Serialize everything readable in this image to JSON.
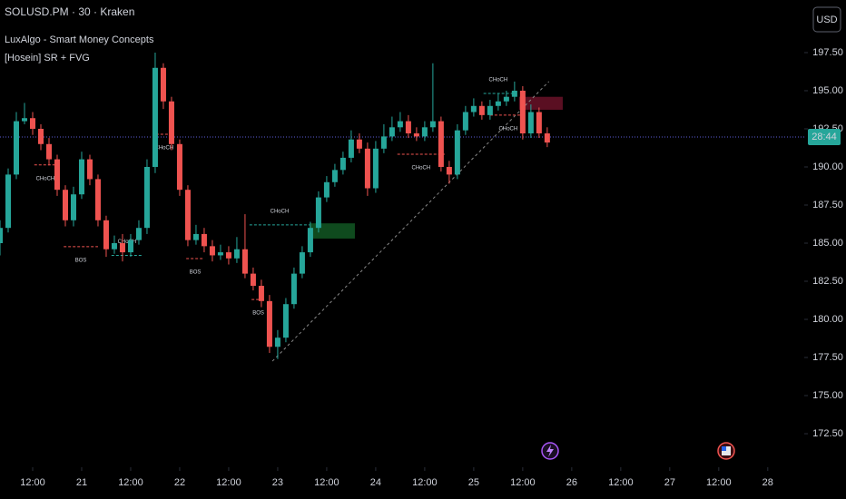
{
  "header": {
    "symbol": "SOLUSD.PM · 30 · Kraken",
    "indicators": [
      "LuxAlgo - Smart Money Concepts",
      "[Hosein] SR + FVG"
    ],
    "currency_button": "USD"
  },
  "chart_data": {
    "type": "candlestick",
    "x": [
      4,
      6,
      8,
      10,
      12,
      14,
      16,
      18,
      20,
      22,
      24,
      26,
      28,
      30,
      32,
      34,
      36,
      38,
      40,
      42,
      44,
      46,
      48,
      50,
      52,
      54,
      56,
      58,
      60,
      62,
      64,
      66,
      68,
      70,
      72,
      74,
      76,
      78,
      80,
      82,
      84,
      86,
      88,
      90,
      92,
      94,
      96,
      98,
      100,
      102,
      104,
      106,
      108,
      110,
      112,
      114,
      116,
      118,
      120,
      122,
      124,
      126,
      128,
      130,
      132,
      134,
      136,
      138
    ],
    "open": [
      185,
      186,
      189.5,
      193,
      193.2,
      192.5,
      191.5,
      190.5,
      188.5,
      186.5,
      188.2,
      190.5,
      189.2,
      186.5,
      184.6,
      185,
      184.4,
      185.2,
      186,
      190,
      196.5,
      194.3,
      191.5,
      188.5,
      185.2,
      185.6,
      184.8,
      184.2,
      184.4,
      184,
      184.6,
      183,
      182.2,
      181.2,
      178.2,
      178.8,
      181,
      183,
      184.4,
      186,
      188,
      189,
      189.8,
      190.6,
      191.8,
      191.2,
      188.6,
      191.2,
      192,
      192.6,
      193,
      192.2,
      192,
      192.6,
      193,
      190,
      189.5,
      192.4,
      193.6,
      194,
      193.4,
      194,
      194.3,
      194.6,
      195,
      192.2,
      193.6,
      192.2
    ],
    "high": [
      186.5,
      189.9,
      193.6,
      194.2,
      193.6,
      192.8,
      191.9,
      190.8,
      188.8,
      188.7,
      191,
      190.8,
      189.5,
      186.8,
      185.5,
      185.6,
      185.6,
      186.5,
      190.5,
      197.5,
      196.8,
      194.6,
      191.8,
      188.8,
      186.2,
      186,
      185.2,
      184.9,
      184.8,
      185.4,
      186.9,
      183.4,
      182.6,
      181.6,
      179.3,
      181.4,
      183.4,
      184.8,
      186.4,
      188.4,
      189.4,
      190.2,
      191,
      192.4,
      192.2,
      191.6,
      191.7,
      192.8,
      193.3,
      193.6,
      193.4,
      192.6,
      193,
      196.8,
      193.3,
      190.4,
      192.8,
      194,
      194.5,
      194.3,
      194.4,
      194.8,
      195,
      195.6,
      195.3,
      194.1,
      193.9,
      192.6
    ],
    "low": [
      184.2,
      185.7,
      189.2,
      192.8,
      192.1,
      191.1,
      190.1,
      188.1,
      186.1,
      186.1,
      187.9,
      188.8,
      186.1,
      184.1,
      184.3,
      183.8,
      184.1,
      184.9,
      185.6,
      189.6,
      193.8,
      191.1,
      188.1,
      184.8,
      184.9,
      184.4,
      183.8,
      183.9,
      183.6,
      183.7,
      182.7,
      181.9,
      180.8,
      177.8,
      177.4,
      178.5,
      180.7,
      182.7,
      184.1,
      185.7,
      187.7,
      188.7,
      189.5,
      190.3,
      190.9,
      188.1,
      188.3,
      190.9,
      191.7,
      192.3,
      191.9,
      191.7,
      191.7,
      192.3,
      189.7,
      188.9,
      189.2,
      192.1,
      193.3,
      193.1,
      193.1,
      193.7,
      194,
      194.3,
      191.8,
      191.9,
      191.9,
      191.3
    ],
    "close": [
      186,
      189.5,
      193,
      193.2,
      192.5,
      191.5,
      190.5,
      188.5,
      186.5,
      188.2,
      190.5,
      189.2,
      186.5,
      184.6,
      185,
      184.4,
      185.2,
      186,
      190,
      196.5,
      194.3,
      191.5,
      188.5,
      185.2,
      185.6,
      184.8,
      184.2,
      184.4,
      184,
      184.6,
      183,
      182.2,
      181.2,
      178.2,
      178.8,
      181,
      183,
      184.4,
      186,
      188,
      189,
      189.8,
      190.6,
      191.8,
      191.2,
      188.6,
      191.2,
      192,
      192.6,
      193,
      192.2,
      192,
      192.6,
      193,
      190,
      189.5,
      192.4,
      193.6,
      194,
      193.4,
      194,
      194.3,
      194.6,
      195,
      192.2,
      193.6,
      192.2,
      191.6
    ],
    "up_color": "#26a69a",
    "down_color": "#ef5350",
    "xlim": [
      4,
      199.6
    ],
    "ylim": [
      170.3,
      200.95
    ],
    "xticks": [
      {
        "value": 12,
        "label": "12:00"
      },
      {
        "value": 24,
        "label": "21"
      },
      {
        "value": 36,
        "label": "12:00"
      },
      {
        "value": 48,
        "label": "22"
      },
      {
        "value": 60,
        "label": "12:00"
      },
      {
        "value": 72,
        "label": "23"
      },
      {
        "value": 84,
        "label": "12:00"
      },
      {
        "value": 96,
        "label": "24"
      },
      {
        "value": 108,
        "label": "12:00"
      },
      {
        "value": 120,
        "label": "25"
      },
      {
        "value": 132,
        "label": "12:00"
      },
      {
        "value": 144,
        "label": "26"
      },
      {
        "value": 156,
        "label": "12:00"
      },
      {
        "value": 168,
        "label": "27"
      },
      {
        "value": 180,
        "label": "12:00"
      },
      {
        "value": 192,
        "label": "28"
      }
    ],
    "yticks": [
      {
        "value": 197.5,
        "label": "197.50"
      },
      {
        "value": 195,
        "label": "195.00"
      },
      {
        "value": 192.5,
        "label": "192.50"
      },
      {
        "value": 190,
        "label": "190.00"
      },
      {
        "value": 187.5,
        "label": "187.50"
      },
      {
        "value": 185,
        "label": "185.00"
      },
      {
        "value": 182.5,
        "label": "182.50"
      },
      {
        "value": 180,
        "label": "180.00"
      },
      {
        "value": 177.5,
        "label": "177.50"
      },
      {
        "value": 175,
        "label": "175.00"
      },
      {
        "value": 172.5,
        "label": "172.50"
      }
    ],
    "last_price": 191.96,
    "countdown": "28:44",
    "price_line_color": "#5b5bd6",
    "structures": [
      {
        "text": "CHoCH",
        "x1": 12.4,
        "x2": 17.8,
        "y": 190.13,
        "color": "#ef5350"
      },
      {
        "text": "BOS",
        "x1": 19.6,
        "x2": 28,
        "y": 184.77,
        "color": "#ef5350"
      },
      {
        "text": "CHoCH",
        "x1": 31.3,
        "x2": 38.9,
        "y": 184.2,
        "color": "#26a69a"
      },
      {
        "text": "CHoCH",
        "x1": 42.2,
        "x2": 46.2,
        "y": 192.14,
        "color": "#ef5350"
      },
      {
        "text": "BOS",
        "x1": 49.6,
        "x2": 54,
        "y": 183.99,
        "color": "#ef5350"
      },
      {
        "text": "CHoCH",
        "x1": 65.1,
        "x2": 79.8,
        "y": 186.2,
        "color": "#26a69a"
      },
      {
        "text": "BOS",
        "x1": 65.6,
        "x2": 68.9,
        "y": 181.3,
        "color": "#ef5350"
      },
      {
        "text": "CHoCH",
        "x1": 101.3,
        "x2": 112.9,
        "y": 190.83,
        "color": "#ef5350"
      },
      {
        "text": "CHoCH",
        "x1": 122.4,
        "x2": 129.6,
        "y": 194.82,
        "color": "#26a69a"
      },
      {
        "text": "CHoCH",
        "x1": 124,
        "x2": 132.9,
        "y": 193.4,
        "color": "#ef5350"
      }
    ],
    "fvg": [
      {
        "x1": 79.8,
        "x2": 90.9,
        "top": 186.3,
        "bottom": 185.3,
        "color": "#0f4a1e"
      },
      {
        "x1": 131.1,
        "x2": 141.8,
        "top": 194.6,
        "bottom": 193.75,
        "color": "#5a0f22"
      }
    ],
    "trendline": {
      "x": [
        70.7,
        138.4
      ],
      "y": [
        177.26,
        195.6
      ],
      "color": "#888888"
    }
  }
}
